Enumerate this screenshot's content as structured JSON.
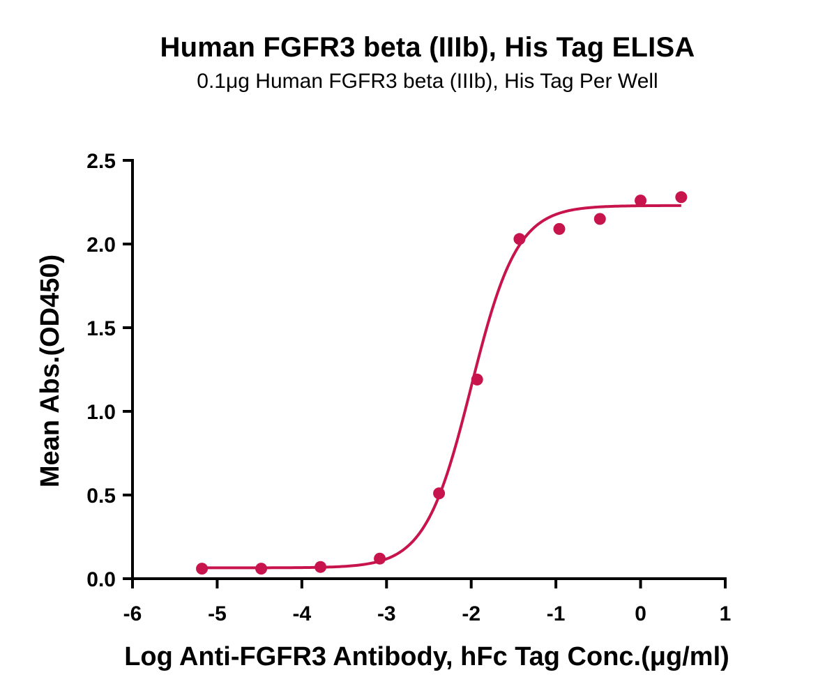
{
  "colors": {
    "series": "#c8144c",
    "axis": "#000000",
    "background": "#ffffff"
  },
  "chart_data": {
    "type": "scatter",
    "title": "Human FGFR3 beta (IIIb), His Tag ELISA",
    "subtitle": "0.1μg Human FGFR3 beta (IIIb), His Tag Per Well",
    "xlabel": "Log Anti-FGFR3 Antibody, hFc Tag Conc.(μg/ml)",
    "ylabel": "Mean Abs.(OD450)",
    "xlim": [
      -6,
      1
    ],
    "ylim": [
      0,
      2.5
    ],
    "xticks": [
      "-6",
      "-5",
      "-4",
      "-3",
      "-2",
      "-1",
      "0",
      "1"
    ],
    "yticks": [
      "0.0",
      "0.5",
      "1.0",
      "1.5",
      "2.0",
      "2.5"
    ],
    "grid": false,
    "legend": "none",
    "series": [
      {
        "x": [
          -5.18,
          -4.48,
          -3.78,
          -3.08,
          -2.38,
          -1.93,
          -1.43,
          -0.96,
          -0.48,
          0.0,
          0.48
        ],
        "y": [
          0.06,
          0.06,
          0.07,
          0.12,
          0.51,
          1.19,
          2.03,
          2.09,
          2.15,
          2.26,
          2.28
        ],
        "fit": {
          "model": "4PL",
          "bottom": 0.065,
          "top": 2.23,
          "logEC50": -2.0,
          "hill": 1.6
        }
      }
    ]
  }
}
